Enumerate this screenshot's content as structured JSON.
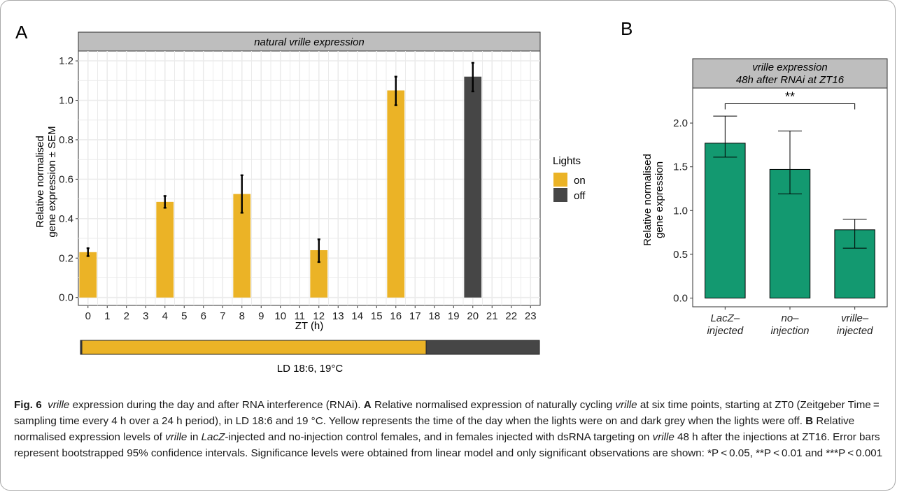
{
  "panel_a": {
    "letter": "A",
    "strip": "natural vrille expression",
    "xlabel": "ZT (h)",
    "ylabel_line1": "Relative normalised",
    "ylabel_line2": "gene expression ± SEM",
    "legend_title": "Lights",
    "legend_on": "on",
    "legend_off": "off",
    "photoperiod_label": "LD 18:6, 19°C"
  },
  "panel_b": {
    "letter": "B",
    "strip_line1": "vrille expression",
    "strip_line2": "48h after RNAi at ZT16",
    "ylabel_line1": "Relative normalised",
    "ylabel_line2": "gene expression",
    "significance": "**"
  },
  "colors": {
    "lights_on": "#EBB326",
    "lights_off": "#464646",
    "rnai_bar": "#139970",
    "strip_bg": "#BEBEBE",
    "grid": "#EBEBEB"
  },
  "chart_data": [
    {
      "type": "bar",
      "title": "natural vrille expression",
      "xlabel": "ZT (h)",
      "ylabel": "Relative normalised gene expression ± SEM",
      "x": [
        0,
        1,
        2,
        3,
        4,
        5,
        6,
        7,
        8,
        9,
        10,
        11,
        12,
        13,
        14,
        15,
        16,
        17,
        18,
        19,
        20,
        21,
        22,
        23
      ],
      "xticks": [
        "0",
        "1",
        "2",
        "3",
        "4",
        "5",
        "6",
        "7",
        "8",
        "9",
        "10",
        "11",
        "12",
        "13",
        "14",
        "15",
        "16",
        "17",
        "18",
        "19",
        "20",
        "21",
        "22",
        "23"
      ],
      "yticks": [
        "0.0",
        "0.2",
        "0.4",
        "0.6",
        "0.8",
        "1.0",
        "1.2"
      ],
      "ylim": [
        -0.04,
        1.25
      ],
      "bars": [
        {
          "x": 0,
          "value": 0.23,
          "err_low": 0.21,
          "err_high": 0.25,
          "lights": "on"
        },
        {
          "x": 4,
          "value": 0.485,
          "err_low": 0.455,
          "err_high": 0.515,
          "lights": "on"
        },
        {
          "x": 8,
          "value": 0.525,
          "err_low": 0.43,
          "err_high": 0.62,
          "lights": "on"
        },
        {
          "x": 12,
          "value": 0.24,
          "err_low": 0.18,
          "err_high": 0.295,
          "lights": "on"
        },
        {
          "x": 16,
          "value": 1.05,
          "err_low": 0.975,
          "err_high": 1.12,
          "lights": "on"
        },
        {
          "x": 20,
          "value": 1.12,
          "err_low": 1.045,
          "err_high": 1.19,
          "lights": "off"
        }
      ],
      "legend": {
        "title": "Lights",
        "entries": [
          "on",
          "off"
        ],
        "position": "right"
      },
      "grid": true,
      "photoperiod": {
        "label": "LD 18:6, 19°C",
        "light_start": 0,
        "light_end": 18,
        "x_range": [
          -0.5,
          23.5
        ]
      }
    },
    {
      "type": "bar",
      "title": "vrille expression 48h after RNAi at ZT16",
      "ylabel": "Relative normalised gene expression",
      "categories": [
        [
          "LacZ–",
          "injected"
        ],
        [
          "no–",
          "injection"
        ],
        [
          "vrille–",
          "injected"
        ]
      ],
      "values": [
        1.77,
        1.47,
        0.78
      ],
      "ci_low": [
        1.61,
        1.19,
        0.57
      ],
      "ci_high": [
        2.08,
        1.91,
        0.9
      ],
      "yticks": [
        "0.0",
        "0.5",
        "1.0",
        "1.5",
        "2.0"
      ],
      "ylim": [
        -0.1,
        2.4
      ],
      "grid": false,
      "significance": {
        "from": 0,
        "to": 2,
        "label": "**",
        "y": 2.22
      }
    }
  ],
  "caption": {
    "fig_label": "Fig. 6",
    "s1_it": "vrille",
    "s1": " expression during the day and after RNA interference (RNAi). ",
    "a_label": "A",
    "s2": " Relative normalised expression of naturally cycling ",
    "s2_it": "vrille",
    "s3": " at six time points, starting at ZT0 (Zeitgeber Time = sampling time every 4 h over a 24 h period), in LD 18:6 and 19 °C. Yellow represents the time of the day when the lights were on and dark grey when the lights were off. ",
    "b_label": "B",
    "s4": " Relative normalised expression levels of ",
    "s4_it": "vrille",
    "s5": " in ",
    "s5_it": "LacZ",
    "s6": "-injected and no-injection control females, and in females injected with dsRNA targeting on ",
    "s6_it": "vrille",
    "s7": " 48 h after the injections at ZT16. Error bars represent bootstrapped 95% confidence intervals. Significance levels were obtained from linear model and only significant observations are shown: *P < 0.05, **P < 0.01 and ***P < 0.001"
  }
}
